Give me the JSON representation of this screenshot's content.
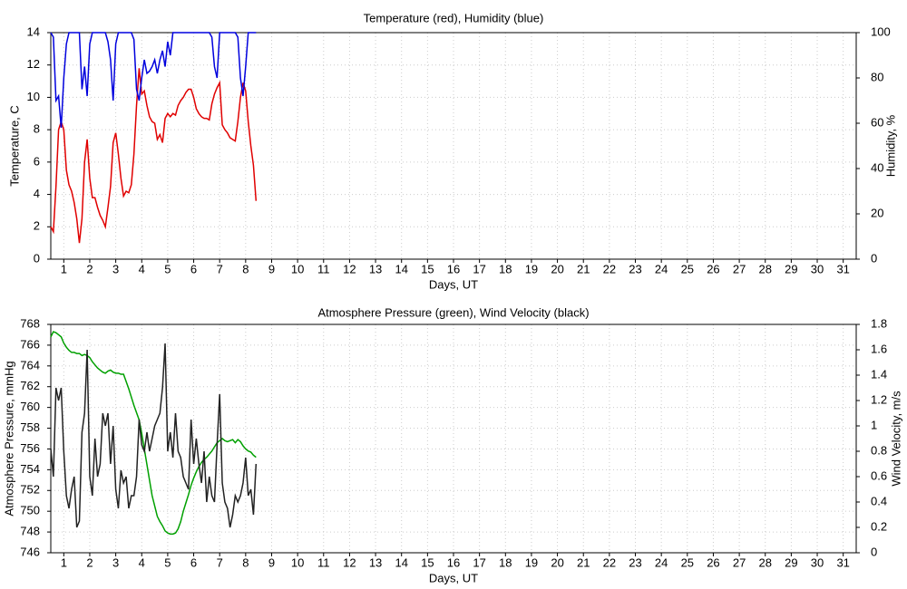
{
  "chart_data": [
    {
      "type": "line",
      "title": "Temperature (red), Humidity (blue)",
      "xlabel": "Days, UT",
      "ylabel": "Temperature, C",
      "y2label": "Humidity, %",
      "xlim": [
        0.5,
        31.5
      ],
      "xticks": [
        1,
        2,
        3,
        4,
        5,
        6,
        7,
        8,
        9,
        10,
        11,
        12,
        13,
        14,
        15,
        16,
        17,
        18,
        19,
        20,
        21,
        22,
        23,
        24,
        25,
        26,
        27,
        28,
        29,
        30,
        31
      ],
      "ylim": [
        0,
        14
      ],
      "yticks": [
        0,
        2,
        4,
        6,
        8,
        10,
        12,
        14
      ],
      "y2lim": [
        0,
        100
      ],
      "y2ticks": [
        0,
        20,
        40,
        60,
        80,
        100
      ],
      "grid": true,
      "x": [
        0.5,
        0.6,
        0.7,
        0.8,
        0.9,
        1,
        1.1,
        1.2,
        1.3,
        1.4,
        1.5,
        1.6,
        1.7,
        1.8,
        1.9,
        2,
        2.1,
        2.2,
        2.3,
        2.4,
        2.5,
        2.6,
        2.7,
        2.8,
        2.9,
        3,
        3.1,
        3.2,
        3.3,
        3.4,
        3.5,
        3.6,
        3.7,
        3.8,
        3.9,
        4,
        4.1,
        4.2,
        4.3,
        4.4,
        4.5,
        4.6,
        4.7,
        4.8,
        4.9,
        5,
        5.1,
        5.2,
        5.3,
        5.4,
        5.5,
        5.6,
        5.7,
        5.8,
        5.9,
        6,
        6.1,
        6.2,
        6.3,
        6.4,
        6.5,
        6.6,
        6.7,
        6.8,
        6.9,
        7,
        7.1,
        7.2,
        7.3,
        7.4,
        7.5,
        7.6,
        7.7,
        7.8,
        7.9,
        8,
        8.1,
        8.2,
        8.3,
        8.4
      ],
      "series": [
        {
          "name": "Temperature",
          "color": "#e00000",
          "values": [
            2.0,
            1.7,
            4.5,
            8.0,
            8.5,
            8.0,
            5.5,
            4.6,
            4.2,
            3.5,
            2.5,
            1.0,
            2.5,
            6.0,
            7.4,
            5.0,
            3.8,
            3.8,
            3.2,
            2.7,
            2.4,
            2.0,
            3.2,
            4.5,
            7.2,
            7.8,
            6.5,
            5.0,
            3.9,
            4.2,
            4.1,
            4.6,
            6.5,
            9.5,
            11.8,
            10.2,
            10.4,
            9.5,
            8.8,
            8.5,
            8.4,
            7.4,
            7.7,
            7.2,
            8.7,
            9.0,
            8.8,
            9.0,
            8.9,
            9.5,
            9.8,
            10.0,
            10.3,
            10.5,
            10.5,
            10.0,
            9.3,
            9.0,
            8.8,
            8.7,
            8.7,
            8.6,
            9.6,
            10.2,
            10.6,
            10.9,
            8.3,
            8.0,
            7.8,
            7.5,
            7.4,
            7.3,
            8.5,
            10.0,
            10.9,
            10.4,
            8.5,
            7.0,
            5.8,
            3.6
          ]
        },
        {
          "name": "Humidity",
          "color": "#0000dd",
          "axis": "y2",
          "values": [
            100,
            98,
            70,
            72,
            58,
            80,
            95,
            100,
            100,
            100,
            100,
            100,
            75,
            85,
            72,
            95,
            100,
            100,
            100,
            100,
            100,
            100,
            96,
            88,
            70,
            95,
            100,
            100,
            100,
            100,
            100,
            100,
            97,
            75,
            70,
            80,
            88,
            82,
            83,
            85,
            88,
            82,
            88,
            92,
            85,
            96,
            90,
            100,
            100,
            100,
            100,
            100,
            100,
            100,
            100,
            100,
            100,
            100,
            100,
            100,
            100,
            100,
            98,
            85,
            80,
            100,
            100,
            100,
            100,
            100,
            100,
            100,
            98,
            80,
            72,
            85,
            100,
            100,
            100,
            100
          ]
        }
      ]
    },
    {
      "type": "line",
      "title": "Atmosphere Pressure (green), Wind Velocity (black)",
      "xlabel": "Days, UT",
      "ylabel": "Atmosphere Pressure, mmHg",
      "y2label": "Wind Velocity, m/s",
      "xlim": [
        0.5,
        31.5
      ],
      "xticks": [
        1,
        2,
        3,
        4,
        5,
        6,
        7,
        8,
        9,
        10,
        11,
        12,
        13,
        14,
        15,
        16,
        17,
        18,
        19,
        20,
        21,
        22,
        23,
        24,
        25,
        26,
        27,
        28,
        29,
        30,
        31
      ],
      "ylim": [
        746,
        768
      ],
      "yticks": [
        746,
        748,
        750,
        752,
        754,
        756,
        758,
        760,
        762,
        764,
        766,
        768
      ],
      "y2lim": [
        0,
        1.8
      ],
      "y2ticks": [
        0,
        0.2,
        0.4,
        0.6,
        0.8,
        1,
        1.2,
        1.4,
        1.6,
        1.8
      ],
      "grid": true,
      "x": [
        0.5,
        0.6,
        0.7,
        0.8,
        0.9,
        1,
        1.1,
        1.2,
        1.3,
        1.4,
        1.5,
        1.6,
        1.7,
        1.8,
        1.9,
        2,
        2.1,
        2.2,
        2.3,
        2.4,
        2.5,
        2.6,
        2.7,
        2.8,
        2.9,
        3,
        3.1,
        3.2,
        3.3,
        3.4,
        3.5,
        3.6,
        3.7,
        3.8,
        3.9,
        4,
        4.1,
        4.2,
        4.3,
        4.4,
        4.5,
        4.6,
        4.7,
        4.8,
        4.9,
        5,
        5.1,
        5.2,
        5.3,
        5.4,
        5.5,
        5.6,
        5.7,
        5.8,
        5.9,
        6,
        6.1,
        6.2,
        6.3,
        6.4,
        6.5,
        6.6,
        6.7,
        6.8,
        6.9,
        7,
        7.1,
        7.2,
        7.3,
        7.4,
        7.5,
        7.6,
        7.7,
        7.8,
        7.9,
        8,
        8.1,
        8.2,
        8.3,
        8.4
      ],
      "series": [
        {
          "name": "Atmosphere Pressure",
          "color": "#00a000",
          "values": [
            766.8,
            767.3,
            767.2,
            767,
            766.8,
            766.2,
            765.8,
            765.5,
            765.3,
            765.3,
            765.2,
            765.2,
            765,
            765.1,
            765,
            764.8,
            764.4,
            764.1,
            763.8,
            763.6,
            763.4,
            763.3,
            763.5,
            763.6,
            763.4,
            763.3,
            763.3,
            763.2,
            763.2,
            762.5,
            761.8,
            761,
            760.2,
            759.5,
            758.8,
            757.5,
            756,
            754.5,
            753,
            751.5,
            750.5,
            749.5,
            749,
            748.6,
            748.1,
            747.9,
            747.8,
            747.8,
            747.9,
            748.3,
            749,
            750,
            750.8,
            751.6,
            752.5,
            753.2,
            753.8,
            754.3,
            754.7,
            755,
            755.2,
            755.5,
            755.8,
            756.2,
            756.6,
            756.8,
            757,
            756.8,
            756.7,
            756.8,
            756.9,
            756.6,
            756.9,
            756.7,
            756.3,
            756,
            755.8,
            755.7,
            755.4,
            755.2
          ]
        },
        {
          "name": "Wind Velocity",
          "color": "#222222",
          "axis": "y2",
          "values": [
            0.82,
            0.6,
            1.3,
            1.2,
            1.3,
            0.8,
            0.45,
            0.35,
            0.5,
            0.6,
            0.2,
            0.25,
            0.95,
            1.1,
            1.6,
            0.6,
            0.45,
            0.9,
            0.6,
            0.7,
            1.1,
            1.0,
            1.1,
            0.7,
            1.0,
            0.5,
            0.35,
            0.65,
            0.55,
            0.6,
            0.35,
            0.45,
            0.45,
            0.6,
            1.05,
            0.85,
            0.8,
            0.95,
            0.8,
            0.9,
            1.0,
            1.05,
            1.1,
            1.3,
            1.65,
            0.8,
            0.95,
            0.75,
            1.1,
            0.8,
            0.75,
            0.6,
            0.55,
            0.5,
            1.05,
            0.7,
            0.9,
            0.7,
            0.55,
            0.8,
            0.4,
            0.6,
            0.45,
            0.4,
            0.85,
            1.25,
            0.55,
            0.4,
            0.35,
            0.2,
            0.3,
            0.45,
            0.4,
            0.45,
            0.55,
            0.75,
            0.45,
            0.5,
            0.3,
            0.7
          ]
        }
      ]
    }
  ]
}
